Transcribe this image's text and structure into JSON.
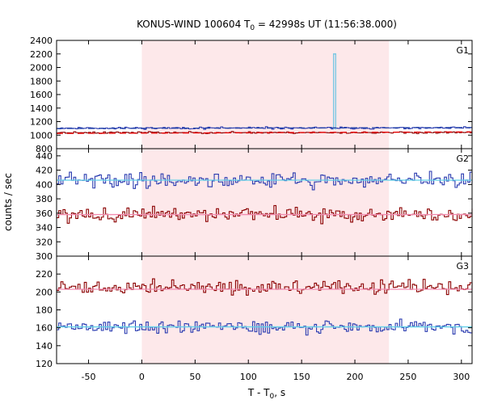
{
  "chart_data": {
    "type": "line",
    "title_prefix": "KONUS-WIND 100604 T",
    "title_sub": "0",
    "title_suffix": " = 42998s UT (11:56:38.000)",
    "xlabel_prefix": "T - T",
    "xlabel_sub": "0",
    "xlabel_suffix": ", s",
    "ylabel": "counts / sec",
    "xlim": [
      -80,
      310
    ],
    "x_ticks": [
      -50,
      0,
      50,
      100,
      150,
      200,
      250,
      300
    ],
    "highlight_interval": [
      0,
      232
    ],
    "highlight_color": "#fde8ea",
    "panels": [
      {
        "name": "G1",
        "ylim": [
          800,
          2400
        ],
        "y_ticks": [
          800,
          1000,
          1200,
          1400,
          1600,
          1800,
          2000,
          2200,
          2400
        ],
        "series": [
          {
            "color": "#2a3bb0",
            "baseline": 1105,
            "noise": 14,
            "seed": 11
          },
          {
            "color": "#8b0000",
            "baseline": 1038,
            "noise": 12,
            "seed": 23
          },
          {
            "color": "#7ec8e3",
            "baseline": 1080,
            "noise": 0,
            "seed": 3,
            "spike": {
              "x": [
                180,
                182
              ],
              "y": 2200
            }
          }
        ],
        "fits": [
          {
            "color": "#1f3fa8",
            "y0": 1098,
            "y1": 1112,
            "dash": true
          },
          {
            "color": "#e60000",
            "y0": 1025,
            "y1": 1048,
            "dash": true
          }
        ]
      },
      {
        "name": "G2",
        "ylim": [
          300,
          450
        ],
        "y_ticks": [
          300,
          320,
          340,
          360,
          380,
          400,
          420,
          440
        ],
        "series": [
          {
            "color": "#2a3bb0",
            "baseline": 406,
            "noise": 10,
            "seed": 41
          },
          {
            "color": "#8b0000",
            "baseline": 358,
            "noise": 9,
            "seed": 57
          }
        ],
        "fits": [
          {
            "color": "#62d0e8",
            "y0": 406,
            "y1": 406,
            "dash": false
          },
          {
            "color": "#f28cb0",
            "y0": 358,
            "y1": 358,
            "dash": false
          }
        ]
      },
      {
        "name": "G3",
        "ylim": [
          120,
          240
        ],
        "y_ticks": [
          120,
          140,
          160,
          180,
          200,
          220
        ],
        "series": [
          {
            "color": "#8b0000",
            "baseline": 205,
            "noise": 7,
            "seed": 71
          },
          {
            "color": "#2a3bb0",
            "baseline": 161,
            "noise": 7,
            "seed": 89
          }
        ],
        "fits": [
          {
            "color": "#f28cb0",
            "y0": 203,
            "y1": 203,
            "dash": false
          },
          {
            "color": "#62d0e8",
            "y0": 161,
            "y1": 161,
            "dash": false
          }
        ]
      }
    ]
  }
}
